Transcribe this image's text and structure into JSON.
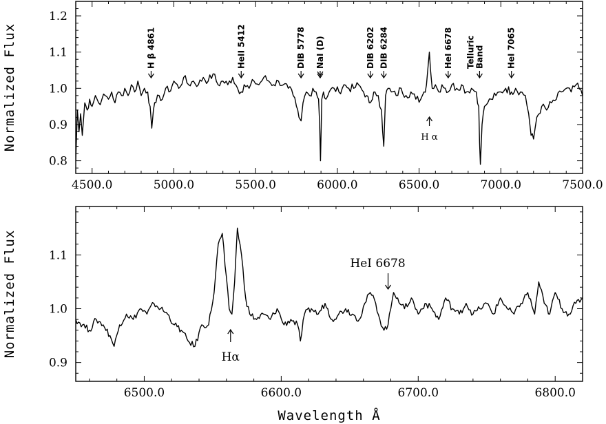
{
  "chart_data": [
    {
      "type": "line",
      "title": "",
      "xlabel": "",
      "ylabel": "Normalized Flux",
      "xlim": [
        4400,
        7500
      ],
      "ylim": [
        0.765,
        1.24
      ],
      "xticks": [
        4500,
        5000,
        5500,
        6000,
        6500,
        7000,
        7500
      ],
      "xtick_labels": [
        "4500.0",
        "5000.0",
        "5500.0",
        "6000.0",
        "6500.0",
        "7000.0",
        "7500.0"
      ],
      "yticks": [
        0.8,
        0.9,
        1.0,
        1.1,
        1.2
      ],
      "ytick_labels": [
        "0.8",
        "0.9",
        "1.0",
        "1.1",
        "1.2"
      ],
      "series": [
        {
          "x": [
            4400,
            4410,
            4420,
            4430,
            4440,
            4455,
            4470,
            4485,
            4500,
            4520,
            4540,
            4560,
            4580,
            4600,
            4620,
            4640,
            4660,
            4680,
            4700,
            4720,
            4740,
            4760,
            4780,
            4800,
            4820,
            4840,
            4855,
            4865,
            4875,
            4890,
            4910,
            4930,
            4950,
            4970,
            5000,
            5030,
            5060,
            5090,
            5120,
            5150,
            5180,
            5210,
            5240,
            5270,
            5300,
            5330,
            5360,
            5390,
            5412,
            5430,
            5460,
            5490,
            5520,
            5550,
            5580,
            5610,
            5640,
            5670,
            5700,
            5730,
            5750,
            5765,
            5778,
            5790,
            5810,
            5830,
            5850,
            5870,
            5885,
            5892,
            5897,
            5905,
            5915,
            5930,
            5950,
            5980,
            6010,
            6040,
            6070,
            6100,
            6130,
            6160,
            6180,
            6195,
            6202,
            6215,
            6230,
            6250,
            6270,
            6284,
            6295,
            6310,
            6330,
            6360,
            6390,
            6420,
            6450,
            6480,
            6510,
            6530,
            6545,
            6555,
            6563,
            6570,
            6580,
            6600,
            6620,
            6640,
            6660,
            6678,
            6700,
            6730,
            6760,
            6790,
            6820,
            6850,
            6865,
            6870,
            6875,
            6885,
            6900,
            6920,
            6940,
            6970,
            7000,
            7030,
            7065,
            7090,
            7120,
            7150,
            7170,
            7185,
            7200,
            7220,
            7250,
            7280,
            7310,
            7340,
            7370,
            7400,
            7430,
            7460,
            7500
          ],
          "y": [
            0.8,
            0.94,
            0.88,
            0.93,
            0.87,
            0.96,
            0.94,
            0.97,
            0.95,
            0.98,
            0.96,
            0.97,
            0.98,
            0.97,
            0.99,
            0.96,
            0.99,
            0.98,
            1.0,
            0.98,
            1.01,
            0.99,
            1.02,
            0.98,
            1.0,
            0.99,
            0.95,
            0.89,
            0.94,
            0.96,
            0.98,
            0.97,
            1.0,
            0.99,
            1.02,
            1.0,
            1.03,
            1.01,
            1.02,
            1.01,
            1.03,
            1.02,
            1.04,
            1.01,
            1.02,
            1.01,
            1.03,
            1.0,
            0.99,
            1.01,
            1.0,
            1.02,
            1.01,
            1.03,
            1.02,
            1.01,
            1.02,
            1.01,
            1.0,
            0.98,
            0.95,
            0.92,
            0.91,
            0.96,
            0.99,
            0.98,
            1.0,
            0.99,
            0.97,
            0.9,
            0.8,
            0.97,
            0.99,
            0.97,
            0.99,
            1.0,
            0.99,
            1.01,
            1.0,
            1.0,
            1.01,
            0.99,
            0.98,
            0.96,
            0.96,
            0.97,
            0.99,
            0.98,
            0.94,
            0.84,
            0.98,
            1.0,
            0.99,
            0.98,
            1.0,
            0.98,
            0.99,
            0.97,
            0.97,
            0.99,
            1.01,
            1.06,
            1.1,
            1.05,
            1.0,
            1.01,
            0.99,
            1.01,
            1.0,
            0.99,
            1.01,
            1.0,
            1.01,
            0.99,
            1.0,
            0.99,
            0.95,
            0.85,
            0.79,
            0.9,
            0.95,
            0.96,
            0.97,
            0.98,
            0.99,
            1.0,
            0.99,
            1.0,
            0.99,
            0.98,
            0.93,
            0.87,
            0.86,
            0.92,
            0.95,
            0.94,
            0.96,
            0.97,
            0.99,
            1.0,
            0.99,
            1.01,
            0.98
          ]
        }
      ],
      "annotations": [
        {
          "lines": [
            "H β  4861"
          ],
          "x": 4861,
          "arrow": "down"
        },
        {
          "lines": [
            "HeII  5412"
          ],
          "x": 5412,
          "arrow": "down"
        },
        {
          "lines": [
            "DIB  5778"
          ],
          "x": 5778,
          "arrow": "down"
        },
        {
          "lines": [
            "NaI  (D)"
          ],
          "x": 5895,
          "arrow": "double-down"
        },
        {
          "lines": [
            "DIB  6202"
          ],
          "x": 6202,
          "arrow": "down"
        },
        {
          "lines": [
            "DIB  6284"
          ],
          "x": 6284,
          "arrow": "down"
        },
        {
          "lines": [
            "HeI  6678"
          ],
          "x": 6678,
          "arrow": "down"
        },
        {
          "lines": [
            "Telluric",
            "Band"
          ],
          "x": 6870,
          "arrow": "down"
        },
        {
          "lines": [
            "HeI  7065"
          ],
          "x": 7065,
          "arrow": "down"
        },
        {
          "lines": [
            "H α"
          ],
          "x": 6563,
          "arrow": "up"
        }
      ]
    },
    {
      "type": "line",
      "title": "",
      "xlabel": "Wavelength Å",
      "ylabel": "Normalized Flux",
      "xlim": [
        6450,
        6820
      ],
      "ylim": [
        0.865,
        1.19
      ],
      "xticks": [
        6500,
        6600,
        6700,
        6800
      ],
      "xtick_labels": [
        "6500.0",
        "6600.0",
        "6700.0",
        "6800.0"
      ],
      "yticks": [
        0.9,
        1.0,
        1.1
      ],
      "ytick_labels": [
        "0.9",
        "1.0",
        "1.1"
      ],
      "series": [
        {
          "x": [
            6450,
            6455,
            6460,
            6465,
            6470,
            6475,
            6478,
            6482,
            6487,
            6492,
            6497,
            6502,
            6507,
            6512,
            6517,
            6522,
            6527,
            6532,
            6537,
            6542,
            6547,
            6551,
            6554,
            6557,
            6559,
            6562,
            6564,
            6566,
            6568,
            6571,
            6574,
            6577,
            6582,
            6587,
            6592,
            6597,
            6602,
            6607,
            6612,
            6614,
            6617,
            6622,
            6627,
            6632,
            6637,
            6642,
            6647,
            6652,
            6657,
            6661,
            6665,
            6669,
            6672,
            6675,
            6678,
            6680,
            6682,
            6685,
            6690,
            6695,
            6700,
            6705,
            6710,
            6715,
            6720,
            6725,
            6730,
            6735,
            6740,
            6745,
            6750,
            6755,
            6760,
            6765,
            6770,
            6775,
            6780,
            6785,
            6788,
            6792,
            6796,
            6800,
            6805,
            6810,
            6815,
            6820
          ],
          "y": [
            0.98,
            0.97,
            0.96,
            0.98,
            0.97,
            0.95,
            0.93,
            0.97,
            0.99,
            0.98,
            1.0,
            0.99,
            1.01,
            1.0,
            0.99,
            0.97,
            0.96,
            0.94,
            0.93,
            0.97,
            0.97,
            1.03,
            1.12,
            1.14,
            1.08,
            1.0,
            0.99,
            1.05,
            1.15,
            1.1,
            1.02,
            0.99,
            0.98,
            0.99,
            0.98,
            1.0,
            0.97,
            0.98,
            0.97,
            0.94,
            0.99,
            1.0,
            0.99,
            1.01,
            0.98,
            0.99,
            1.0,
            0.99,
            0.98,
            1.01,
            1.03,
            1.01,
            0.98,
            0.96,
            0.97,
            1.0,
            1.03,
            1.02,
            1.0,
            1.02,
            0.99,
            1.01,
            1.0,
            0.98,
            1.02,
            1.0,
            0.99,
            1.01,
            0.99,
            1.0,
            1.01,
            0.99,
            1.02,
            1.0,
            0.99,
            1.01,
            1.03,
            0.99,
            1.05,
            1.01,
            0.99,
            1.03,
            1.0,
            0.99,
            1.01,
            1.02
          ]
        }
      ],
      "annotations": [
        {
          "lines": [
            "HeI  6678"
          ],
          "x": 6678,
          "arrow": "down"
        },
        {
          "lines": [
            "Hα"
          ],
          "x": 6563,
          "arrow": "up"
        }
      ]
    }
  ]
}
